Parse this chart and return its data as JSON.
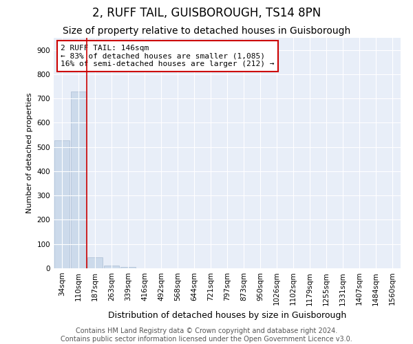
{
  "title": "2, RUFF TAIL, GUISBOROUGH, TS14 8PN",
  "subtitle": "Size of property relative to detached houses in Guisborough",
  "xlabel": "Distribution of detached houses by size in Guisborough",
  "ylabel": "Number of detached properties",
  "bar_labels": [
    "34sqm",
    "110sqm",
    "187sqm",
    "263sqm",
    "339sqm",
    "416sqm",
    "492sqm",
    "568sqm",
    "644sqm",
    "721sqm",
    "797sqm",
    "873sqm",
    "950sqm",
    "1026sqm",
    "1102sqm",
    "1179sqm",
    "1255sqm",
    "1331sqm",
    "1407sqm",
    "1484sqm",
    "1560sqm"
  ],
  "bar_values": [
    527,
    728,
    46,
    11,
    7,
    0,
    0,
    0,
    0,
    0,
    0,
    0,
    0,
    0,
    0,
    0,
    0,
    0,
    0,
    0,
    0
  ],
  "bar_color": "#ccdaeb",
  "bar_edge_color": "#aabdd4",
  "vline_x": 1.5,
  "vline_color": "#cc0000",
  "annotation_text": "2 RUFF TAIL: 146sqm\n← 83% of detached houses are smaller (1,085)\n16% of semi-detached houses are larger (212) →",
  "annotation_box_facecolor": "#ffffff",
  "annotation_box_edgecolor": "#cc0000",
  "ylim": [
    0,
    950
  ],
  "yticks": [
    0,
    100,
    200,
    300,
    400,
    500,
    600,
    700,
    800,
    900
  ],
  "footer_text": "Contains HM Land Registry data © Crown copyright and database right 2024.\nContains public sector information licensed under the Open Government Licence v3.0.",
  "plot_bg_color": "#e8eef8",
  "fig_bg_color": "#ffffff",
  "title_fontsize": 12,
  "subtitle_fontsize": 10,
  "xlabel_fontsize": 9,
  "ylabel_fontsize": 8,
  "tick_fontsize": 7.5,
  "annotation_fontsize": 8,
  "footer_fontsize": 7
}
